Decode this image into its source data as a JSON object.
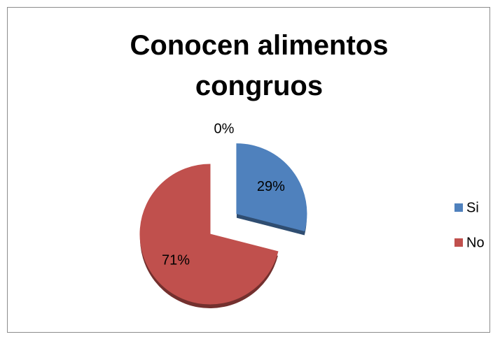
{
  "chart_data": {
    "type": "pie",
    "title": "Conocen alimentos congruos",
    "categories": [
      "Si",
      "No",
      null
    ],
    "values": [
      29,
      71,
      0
    ],
    "value_labels": [
      "29%",
      "71%",
      "0%"
    ],
    "colors": [
      "#4f81bd",
      "#c0504d",
      "#9bbb59"
    ],
    "legend": "right"
  }
}
